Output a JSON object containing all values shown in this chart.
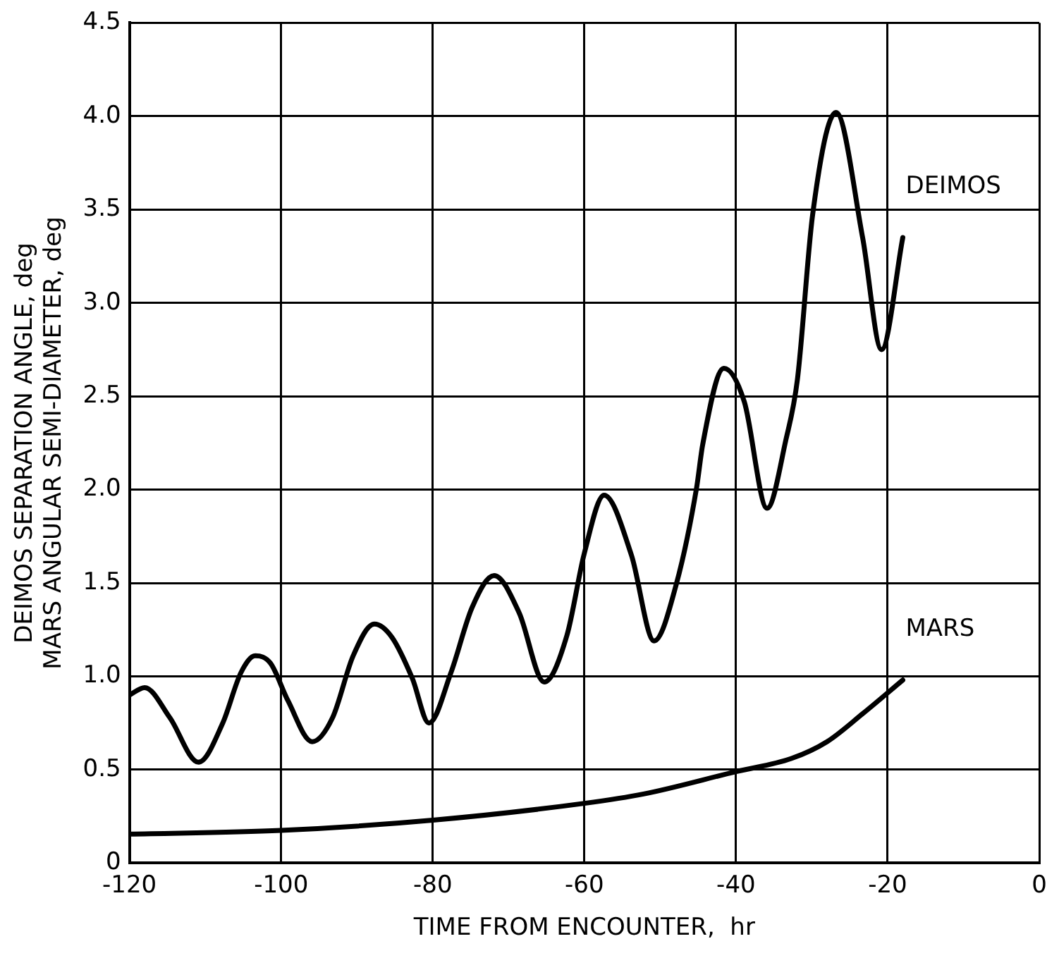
{
  "chart_data": {
    "type": "line",
    "xlabel": "TIME FROM ENCOUNTER,  hr",
    "ylabel": "DEIMOS SEPARATION ANGLE, deg\nMARS ANGULAR SEMI-DIAMETER, deg",
    "xlim": [
      -120,
      0
    ],
    "xticks": [
      -120,
      -100,
      -80,
      -60,
      -40,
      -20,
      0
    ],
    "ylim": [
      0,
      4.5
    ],
    "yticks": [
      0,
      {
        "value": 0.5,
        "label": "0.5"
      },
      {
        "value": 1,
        "label": "1.0"
      },
      {
        "value": 1.5,
        "label": "1.5"
      },
      {
        "value": 2,
        "label": "2.0"
      },
      {
        "value": 2.5,
        "label": "2.5"
      },
      {
        "value": 3,
        "label": "3.0"
      },
      {
        "value": 3.5,
        "label": "3.5"
      },
      {
        "value": 4,
        "label": "4.0"
      },
      {
        "value": 4.5,
        "label": "4.5"
      }
    ],
    "grid": true,
    "legend": false,
    "marker": "none",
    "line_style": "solid",
    "series": [
      {
        "name": "DEIMOS",
        "color": "#000000",
        "x": [
          -120,
          -118,
          -114.7,
          -110.9,
          -107.7,
          -105.3,
          -103.4,
          -101.4,
          -99.1,
          -95.9,
          -93.2,
          -90.5,
          -87.7,
          -85.4,
          -82.7,
          -80.5,
          -77.6,
          -74.8,
          -71.9,
          -68.6,
          -65.3,
          -62.3,
          -60,
          -57.4,
          -53.8,
          -50.8,
          -47.9,
          -45.2,
          -44.4,
          -41.6,
          -38.9,
          -35.9,
          -33.4,
          -31.9,
          -29.9,
          -26.8,
          -23.3,
          -20.8,
          -18
        ],
        "values": [
          0.9,
          0.94,
          0.78,
          0.54,
          0.75,
          1.02,
          1.11,
          1.07,
          0.87,
          0.65,
          0.78,
          1.11,
          1.28,
          1.21,
          0.99,
          0.75,
          1.02,
          1.37,
          1.54,
          1.34,
          0.97,
          1.22,
          1.66,
          1.97,
          1.65,
          1.19,
          1.49,
          2.01,
          2.24,
          2.65,
          2.47,
          1.9,
          2.27,
          2.59,
          3.47,
          4.02,
          3.35,
          2.75,
          3.35
        ]
      },
      {
        "name": "MARS",
        "color": "#000000",
        "x": [
          -120,
          -100,
          -80,
          -60,
          -52.2,
          -40,
          -32.7,
          -28,
          -23.3,
          -18
        ],
        "values": [
          0.155,
          0.175,
          0.23,
          0.32,
          0.37,
          0.49,
          0.56,
          0.65,
          0.8,
          0.98
        ]
      }
    ]
  }
}
